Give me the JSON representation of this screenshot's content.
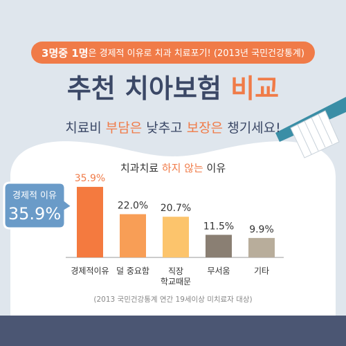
{
  "header": {
    "banner": [
      "3명중 1명",
      "은 경제적 이유로 치과 치료포기! (2013년 국민건강통계)"
    ],
    "title": [
      "추천 치아보험 ",
      "비교"
    ],
    "subtitle": [
      "치료비 ",
      "부담은",
      " 낮추고 ",
      "보장은",
      " 챙기세요!"
    ]
  },
  "chart_data": {
    "type": "bar",
    "title": [
      "치과치료 ",
      "하지 않는",
      " 이유"
    ],
    "categories": [
      "경제적이유",
      "덜 중요함",
      "직장\n학교때문",
      "무서움",
      "기타"
    ],
    "values": [
      35.9,
      22.0,
      20.7,
      11.5,
      9.9
    ],
    "value_labels": [
      "35.9%",
      "22.0%",
      "20.7%",
      "11.5%",
      "9.9%"
    ],
    "colors": [
      "#f47a3f",
      "#f89e56",
      "#fcc46c",
      "#8a7f73",
      "#b8ad9b"
    ],
    "ylim": [
      0,
      40
    ]
  },
  "callout": {
    "label": "경제적 이유",
    "value_label": "35.9%"
  },
  "footnote": "(2013 국민건강통계 연간 19세이상 미치료자 대상)"
}
